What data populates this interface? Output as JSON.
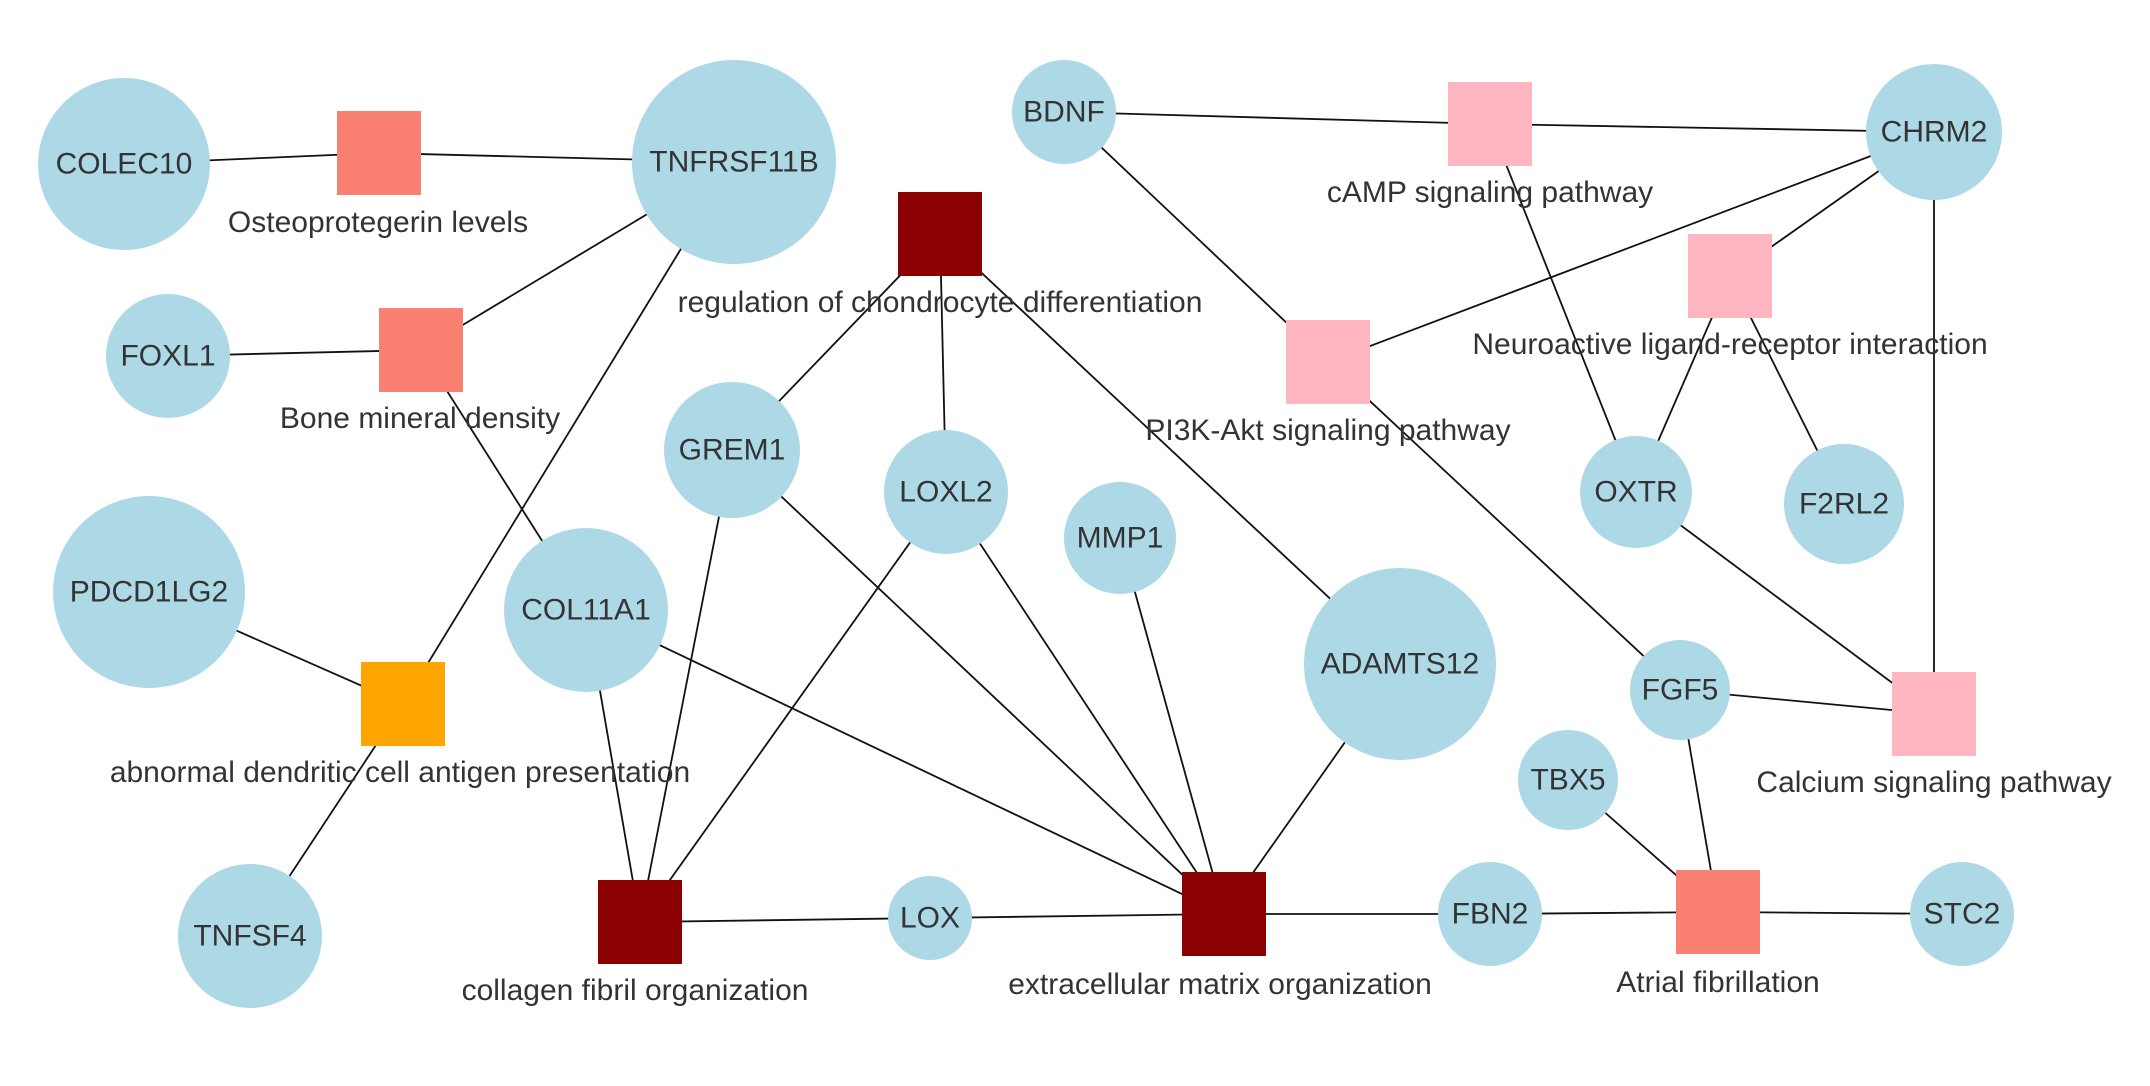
{
  "genes": [
    {
      "id": "COLEC10",
      "label": "COLEC10"
    },
    {
      "id": "TNFRSF11B",
      "label": "TNFRSF11B"
    },
    {
      "id": "FOXL1",
      "label": "FOXL1"
    },
    {
      "id": "PDCD1LG2",
      "label": "PDCD1LG2"
    },
    {
      "id": "COL11A1",
      "label": "COL11A1"
    },
    {
      "id": "TNFSF4",
      "label": "TNFSF4"
    },
    {
      "id": "GREM1",
      "label": "GREM1"
    },
    {
      "id": "LOXL2",
      "label": "LOXL2"
    },
    {
      "id": "MMP1",
      "label": "MMP1"
    },
    {
      "id": "LOX",
      "label": "LOX"
    },
    {
      "id": "ADAMTS12",
      "label": "ADAMTS12"
    },
    {
      "id": "BDNF",
      "label": "BDNF"
    },
    {
      "id": "CHRM2",
      "label": "CHRM2"
    },
    {
      "id": "OXTR",
      "label": "OXTR"
    },
    {
      "id": "F2RL2",
      "label": "F2RL2"
    },
    {
      "id": "FGF5",
      "label": "FGF5"
    },
    {
      "id": "TBX5",
      "label": "TBX5"
    },
    {
      "id": "FBN2",
      "label": "FBN2"
    },
    {
      "id": "STC2",
      "label": "STC2"
    }
  ],
  "terms": [
    {
      "id": "osteoprotegerin",
      "label": "Osteoprotegerin levels",
      "color": "#FA8072"
    },
    {
      "id": "bone",
      "label": "Bone mineral density",
      "color": "#FA8072"
    },
    {
      "id": "dendritic",
      "label": "abnormal dendritic cell antigen presentation",
      "color": "#FFA500"
    },
    {
      "id": "chondrocyte",
      "label": "regulation of chondrocyte differentiation",
      "color": "#8B0000"
    },
    {
      "id": "collagen",
      "label": "collagen fibril organization",
      "color": "#8B0000"
    },
    {
      "id": "ecm",
      "label": "extracellular matrix organization",
      "color": "#8B0000"
    },
    {
      "id": "camp",
      "label": "cAMP signaling pathway",
      "color": "#FFB6C1"
    },
    {
      "id": "pi3k",
      "label": "PI3K-Akt signaling pathway",
      "color": "#FFB6C1"
    },
    {
      "id": "neuro",
      "label": "Neuroactive ligand-receptor interaction",
      "color": "#FFB6C1"
    },
    {
      "id": "calcium",
      "label": "Calcium signaling pathway",
      "color": "#FFB6C1"
    },
    {
      "id": "afib",
      "label": "Atrial fibrillation",
      "color": "#FA8072"
    }
  ],
  "edges": [
    [
      "COLEC10",
      "osteoprotegerin"
    ],
    [
      "TNFRSF11B",
      "osteoprotegerin"
    ],
    [
      "FOXL1",
      "bone"
    ],
    [
      "TNFRSF11B",
      "bone"
    ],
    [
      "COL11A1",
      "bone"
    ],
    [
      "PDCD1LG2",
      "dendritic"
    ],
    [
      "TNFRSF11B",
      "dendritic"
    ],
    [
      "TNFSF4",
      "dendritic"
    ],
    [
      "GREM1",
      "chondrocyte"
    ],
    [
      "LOXL2",
      "chondrocyte"
    ],
    [
      "ADAMTS12",
      "chondrocyte"
    ],
    [
      "GREM1",
      "collagen"
    ],
    [
      "COL11A1",
      "collagen"
    ],
    [
      "LOXL2",
      "collagen"
    ],
    [
      "LOX",
      "collagen"
    ],
    [
      "GREM1",
      "ecm"
    ],
    [
      "COL11A1",
      "ecm"
    ],
    [
      "LOXL2",
      "ecm"
    ],
    [
      "MMP1",
      "ecm"
    ],
    [
      "LOX",
      "ecm"
    ],
    [
      "ADAMTS12",
      "ecm"
    ],
    [
      "FBN2",
      "ecm"
    ],
    [
      "BDNF",
      "camp"
    ],
    [
      "CHRM2",
      "camp"
    ],
    [
      "OXTR",
      "camp"
    ],
    [
      "BDNF",
      "pi3k"
    ],
    [
      "CHRM2",
      "pi3k"
    ],
    [
      "FGF5",
      "pi3k"
    ],
    [
      "CHRM2",
      "neuro"
    ],
    [
      "OXTR",
      "neuro"
    ],
    [
      "F2RL2",
      "neuro"
    ],
    [
      "CHRM2",
      "calcium"
    ],
    [
      "OXTR",
      "calcium"
    ],
    [
      "FGF5",
      "calcium"
    ],
    [
      "FGF5",
      "afib"
    ],
    [
      "TBX5",
      "afib"
    ],
    [
      "FBN2",
      "afib"
    ],
    [
      "STC2",
      "afib"
    ]
  ],
  "style": {
    "gene_fill": "#ADD8E6",
    "edge_color": "#111111"
  }
}
